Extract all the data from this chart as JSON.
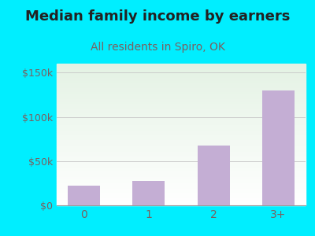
{
  "categories": [
    "0",
    "1",
    "2",
    "3+"
  ],
  "values": [
    22000,
    28000,
    68000,
    130000
  ],
  "bar_color": "#c4aed4",
  "title": "Median family income by earners",
  "subtitle": "All residents in Spiro, OK",
  "title_color": "#222222",
  "subtitle_color": "#7a6060",
  "background_color": "#00eeff",
  "ylabel_color": "#7a6060",
  "tick_color": "#7a6060",
  "ylim": [
    0,
    160000
  ],
  "yticks": [
    0,
    50000,
    100000,
    150000
  ],
  "ytick_labels": [
    "$0",
    "$50k",
    "$100k",
    "$150k"
  ],
  "title_fontsize": 13,
  "subtitle_fontsize": 10,
  "grid_color": "#cccccc"
}
